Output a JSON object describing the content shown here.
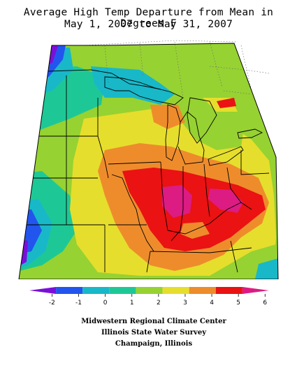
{
  "title": {
    "line1": "Average High Temp Departure from Mean in Degrees F",
    "line2": "May 1, 2007 to May 31, 2007"
  },
  "legend": {
    "colors": [
      "#7a10d8",
      "#2255ee",
      "#18b8c8",
      "#1ec896",
      "#96d232",
      "#e6de2c",
      "#ee8c2c",
      "#ea1212",
      "#dc1c82"
    ],
    "ticks": [
      "-2",
      "-1",
      "0",
      "1",
      "2",
      "3",
      "4",
      "5",
      "6"
    ]
  },
  "credits": {
    "line1": "Midwestern Regional Climate Center",
    "line2": "Illinois State Water Survey",
    "line3": "Champaign, Illinois"
  }
}
